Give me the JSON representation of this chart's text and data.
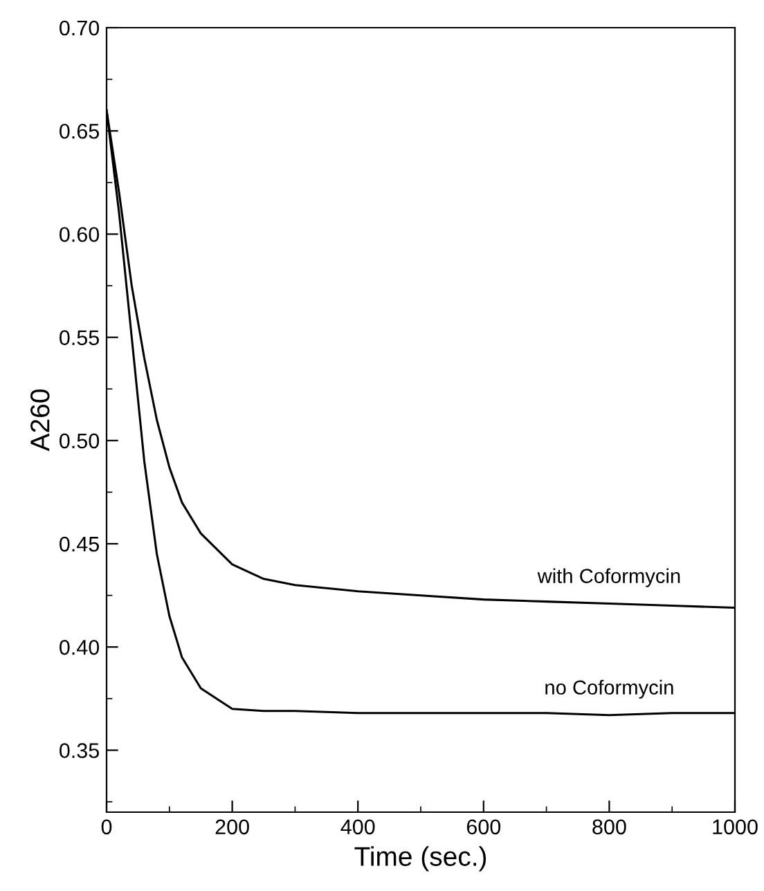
{
  "chart_data": {
    "type": "line",
    "xlabel": "Time (sec.)",
    "ylabel": "A260",
    "xlim": [
      0,
      1000
    ],
    "ylim": [
      0.32,
      0.7
    ],
    "xticks": [
      0,
      200,
      400,
      600,
      800,
      1000
    ],
    "yticks": [
      0.35,
      {
        "value": 0.4,
        "label": "0.40"
      },
      0.45,
      {
        "value": 0.5,
        "label": "0.50"
      },
      0.55,
      {
        "value": 0.6,
        "label": "0.60"
      },
      0.65,
      {
        "value": 0.7,
        "label": "0.70"
      }
    ],
    "grid": false,
    "legend": false,
    "marker": "none",
    "line_style": "solid",
    "series": [
      {
        "name": "with Coformycin",
        "color": "#000000",
        "x": [
          0,
          20,
          40,
          60,
          80,
          100,
          120,
          150,
          200,
          250,
          300,
          400,
          500,
          600,
          700,
          800,
          900,
          1000
        ],
        "values": [
          0.66,
          0.62,
          0.575,
          0.54,
          0.51,
          0.487,
          0.47,
          0.455,
          0.44,
          0.433,
          0.43,
          0.427,
          0.425,
          0.423,
          0.422,
          0.421,
          0.42,
          0.419
        ]
      },
      {
        "name": "no Coformycin",
        "color": "#000000",
        "x": [
          0,
          20,
          40,
          60,
          80,
          100,
          120,
          150,
          200,
          250,
          300,
          400,
          500,
          600,
          700,
          800,
          900,
          1000
        ],
        "values": [
          0.66,
          0.61,
          0.55,
          0.49,
          0.445,
          0.415,
          0.395,
          0.38,
          0.37,
          0.369,
          0.369,
          0.368,
          0.368,
          0.368,
          0.368,
          0.367,
          0.368,
          0.368
        ]
      }
    ]
  }
}
